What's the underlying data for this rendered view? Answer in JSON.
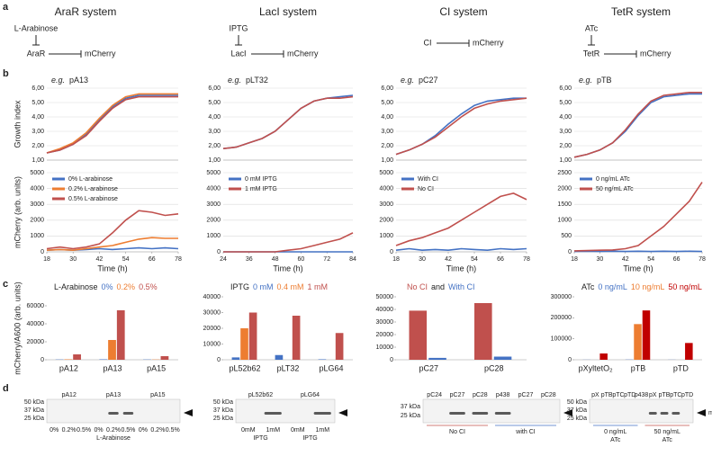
{
  "panel_labels": [
    "a",
    "b",
    "c",
    "d"
  ],
  "systems": [
    {
      "title": "AraR system",
      "inducer": "L-Arabinose",
      "repressor": "AraR",
      "reporter": "mCherry"
    },
    {
      "title": "LacI system",
      "inducer": "IPTG",
      "repressor": "LacI",
      "reporter": "mCherry"
    },
    {
      "title": "CI system",
      "repressor": "CI",
      "reporter": "mCherry"
    },
    {
      "title": "TetR system",
      "inducer": "ATc",
      "repressor": "TetR",
      "reporter": "mCherry"
    }
  ],
  "chart_data": [
    {
      "type": "line",
      "title_prefix": "e.g.",
      "title": "pA13",
      "ylabel": "Growth index",
      "x": [
        18,
        24,
        30,
        36,
        42,
        48,
        54,
        60,
        66,
        72,
        78
      ],
      "xlim": [
        18,
        78
      ],
      "ylim": [
        1,
        6
      ],
      "yticks": [
        {
          "value": 1,
          "label": "1,00"
        },
        {
          "value": 2,
          "label": "2,00"
        },
        {
          "value": 3,
          "label": "3,00"
        },
        {
          "value": 4,
          "label": "4,00"
        },
        {
          "value": 5,
          "label": "5,00"
        },
        {
          "value": 6,
          "label": "6,00"
        }
      ],
      "grid": true,
      "series": [
        {
          "color": "#4472c4",
          "values": [
            1.5,
            1.7,
            2.1,
            2.8,
            3.8,
            4.7,
            5.3,
            5.5,
            5.5,
            5.5,
            5.5
          ]
        },
        {
          "color": "#ed7d31",
          "values": [
            1.5,
            1.8,
            2.2,
            2.9,
            3.9,
            4.8,
            5.4,
            5.6,
            5.6,
            5.6,
            5.6
          ]
        },
        {
          "color": "#c0504d",
          "values": [
            1.5,
            1.7,
            2.1,
            2.7,
            3.7,
            4.6,
            5.2,
            5.4,
            5.4,
            5.4,
            5.4
          ]
        }
      ]
    },
    {
      "type": "line",
      "title_prefix": "e.g.",
      "title": "pLT32",
      "x": [
        24,
        30,
        36,
        42,
        48,
        54,
        60,
        66,
        72,
        78,
        84
      ],
      "xlim": [
        24,
        84
      ],
      "ylim": [
        1,
        6
      ],
      "yticks": [
        {
          "value": 1,
          "label": "1,00"
        },
        {
          "value": 2,
          "label": "2,00"
        },
        {
          "value": 3,
          "label": "3,00"
        },
        {
          "value": 4,
          "label": "4,00"
        },
        {
          "value": 5,
          "label": "5,00"
        },
        {
          "value": 6,
          "label": "6,00"
        }
      ],
      "grid": true,
      "series": [
        {
          "color": "#4472c4",
          "values": [
            1.8,
            1.9,
            2.2,
            2.5,
            3.0,
            3.8,
            4.6,
            5.1,
            5.3,
            5.4,
            5.5
          ]
        },
        {
          "color": "#c0504d",
          "values": [
            1.8,
            1.9,
            2.2,
            2.5,
            3.0,
            3.8,
            4.6,
            5.1,
            5.3,
            5.3,
            5.4
          ]
        }
      ]
    },
    {
      "type": "line",
      "title_prefix": "e.g.",
      "title": "pC27",
      "x": [
        18,
        24,
        30,
        36,
        42,
        48,
        54,
        60,
        66,
        72,
        78
      ],
      "xlim": [
        18,
        78
      ],
      "ylim": [
        1,
        6
      ],
      "yticks": [
        {
          "value": 1,
          "label": "1,00"
        },
        {
          "value": 2,
          "label": "2,00"
        },
        {
          "value": 3,
          "label": "3,00"
        },
        {
          "value": 4,
          "label": "4,00"
        },
        {
          "value": 5,
          "label": "5,00"
        },
        {
          "value": 6,
          "label": "6,00"
        }
      ],
      "grid": true,
      "series": [
        {
          "color": "#4472c4",
          "values": [
            1.4,
            1.7,
            2.1,
            2.7,
            3.5,
            4.2,
            4.8,
            5.1,
            5.2,
            5.3,
            5.3
          ]
        },
        {
          "color": "#c0504d",
          "values": [
            1.4,
            1.7,
            2.1,
            2.6,
            3.3,
            4.0,
            4.6,
            4.9,
            5.1,
            5.2,
            5.3
          ]
        }
      ]
    },
    {
      "type": "line",
      "title_prefix": "e.g.",
      "title": "pTB",
      "x": [
        18,
        24,
        30,
        36,
        42,
        48,
        54,
        60,
        66,
        72,
        78
      ],
      "xlim": [
        18,
        78
      ],
      "ylim": [
        1,
        6
      ],
      "yticks": [
        {
          "value": 1,
          "label": "1,00"
        },
        {
          "value": 2,
          "label": "2,00"
        },
        {
          "value": 3,
          "label": "3,00"
        },
        {
          "value": 4,
          "label": "4,00"
        },
        {
          "value": 5,
          "label": "5,00"
        },
        {
          "value": 6,
          "label": "6,00"
        }
      ],
      "grid": true,
      "series": [
        {
          "color": "#4472c4",
          "values": [
            1.2,
            1.4,
            1.7,
            2.2,
            3.0,
            4.1,
            5.0,
            5.4,
            5.5,
            5.6,
            5.6
          ]
        },
        {
          "color": "#c0504d",
          "values": [
            1.2,
            1.4,
            1.7,
            2.2,
            3.1,
            4.2,
            5.1,
            5.5,
            5.6,
            5.7,
            5.7
          ]
        }
      ]
    },
    {
      "type": "line",
      "ylabel": "mCherry (arb. units)",
      "xlabel": "Time (h)",
      "x": [
        18,
        24,
        30,
        36,
        42,
        48,
        54,
        60,
        66,
        72,
        78
      ],
      "xlim": [
        18,
        78
      ],
      "xticks": [
        18,
        30,
        42,
        54,
        66,
        78
      ],
      "ylim": [
        0,
        5000
      ],
      "yticks": [
        0,
        1000,
        2000,
        3000,
        4000,
        5000
      ],
      "grid": true,
      "series": [
        {
          "name": "0% L-arabinose",
          "color": "#4472c4",
          "values": [
            100,
            150,
            100,
            150,
            200,
            150,
            200,
            250,
            200,
            250,
            200
          ]
        },
        {
          "name": "0.2% L-arabinose",
          "color": "#ed7d31",
          "values": [
            100,
            150,
            100,
            200,
            300,
            400,
            600,
            800,
            900,
            850,
            850
          ]
        },
        {
          "name": "0.5% L-arabinose",
          "color": "#c0504d",
          "values": [
            200,
            300,
            200,
            300,
            500,
            1200,
            2000,
            2600,
            2500,
            2300,
            2400
          ]
        }
      ]
    },
    {
      "type": "line",
      "xlabel": "Time (h)",
      "x": [
        24,
        30,
        36,
        42,
        48,
        54,
        60,
        66,
        72,
        78,
        84
      ],
      "xlim": [
        24,
        84
      ],
      "xticks": [
        24,
        36,
        48,
        60,
        72,
        84
      ],
      "ylim": [
        0,
        5000
      ],
      "yticks": [
        0,
        1000,
        2000,
        3000,
        4000,
        5000
      ],
      "grid": true,
      "series": [
        {
          "name": "0 mM IPTG",
          "color": "#4472c4",
          "values": [
            0,
            0,
            0,
            0,
            0,
            0,
            0,
            0,
            0,
            0,
            0
          ]
        },
        {
          "name": "1 mM IPTG",
          "color": "#c0504d",
          "values": [
            0,
            0,
            0,
            0,
            0,
            100,
            200,
            400,
            600,
            800,
            1200
          ]
        }
      ]
    },
    {
      "type": "line",
      "xlabel": "Time (h)",
      "x": [
        18,
        24,
        30,
        36,
        42,
        48,
        54,
        60,
        66,
        72,
        78
      ],
      "xlim": [
        18,
        78
      ],
      "xticks": [
        18,
        30,
        42,
        54,
        66,
        78
      ],
      "ylim": [
        0,
        5000
      ],
      "yticks": [
        0,
        1000,
        2000,
        3000,
        4000,
        5000
      ],
      "grid": true,
      "series": [
        {
          "name": "With CI",
          "color": "#4472c4",
          "values": [
            100,
            200,
            100,
            150,
            100,
            200,
            150,
            100,
            200,
            150,
            200
          ]
        },
        {
          "name": "No CI",
          "color": "#c0504d",
          "values": [
            400,
            700,
            900,
            1200,
            1500,
            2000,
            2500,
            3000,
            3500,
            3700,
            3300
          ]
        }
      ]
    },
    {
      "type": "line",
      "xlabel": "Time (h)",
      "x": [
        18,
        24,
        30,
        36,
        42,
        48,
        54,
        60,
        66,
        72,
        78
      ],
      "xlim": [
        18,
        78
      ],
      "xticks": [
        18,
        30,
        42,
        54,
        66,
        78
      ],
      "ylim": [
        0,
        2500
      ],
      "yticks": [
        0,
        500,
        1000,
        1500,
        2000,
        2500
      ],
      "grid": true,
      "series": [
        {
          "name": "0 ng/mL ATc",
          "color": "#4472c4",
          "values": [
            10,
            20,
            10,
            20,
            10,
            20,
            10,
            20,
            10,
            20,
            10
          ]
        },
        {
          "name": "50 ng/mL ATc",
          "color": "#c0504d",
          "values": [
            30,
            40,
            50,
            60,
            100,
            200,
            500,
            800,
            1200,
            1600,
            2200
          ]
        }
      ]
    },
    {
      "type": "bar",
      "ylabel": "mCherry/A600 (arb. units)",
      "legend_title": "L-Arabinose",
      "categories": [
        "pA12",
        "pA13",
        "pA15"
      ],
      "ylim": [
        0,
        70000
      ],
      "yticks": [
        0,
        20000,
        40000,
        60000
      ],
      "series": [
        {
          "name": "0%",
          "color": "#4472c4",
          "values": [
            300,
            500,
            300
          ]
        },
        {
          "name": "0.2%",
          "color": "#ed7d31",
          "values": [
            500,
            22000,
            300
          ]
        },
        {
          "name": "0.5%",
          "color": "#c0504d",
          "values": [
            6000,
            55000,
            4000
          ]
        }
      ]
    },
    {
      "type": "bar",
      "legend_title": "IPTG",
      "categories": [
        "pL52b62",
        "pLT32",
        "pLG64"
      ],
      "ylim": [
        0,
        40000
      ],
      "yticks": [
        0,
        10000,
        20000,
        30000,
        40000
      ],
      "series": [
        {
          "name": "0 mM",
          "color": "#4472c4",
          "values": [
            1500,
            3000,
            300
          ]
        },
        {
          "name": "0.4 mM",
          "color": "#ed7d31",
          "values": [
            20000,
            null,
            null
          ]
        },
        {
          "name": "1 mM",
          "color": "#c0504d",
          "values": [
            30000,
            28000,
            17000
          ]
        }
      ]
    },
    {
      "type": "bar",
      "legend_separator": "and",
      "categories": [
        "pC27",
        "pC28"
      ],
      "ylim": [
        0,
        50000
      ],
      "yticks": [
        0,
        10000,
        20000,
        30000,
        40000,
        50000
      ],
      "series": [
        {
          "name": "No CI",
          "color": "#c0504d",
          "values": [
            39000,
            45000
          ]
        },
        {
          "name": "With CI",
          "color": "#4472c4",
          "values": [
            1500,
            2500
          ]
        }
      ]
    },
    {
      "type": "bar",
      "legend_title": "ATc",
      "categories": [
        "pXyltetO₂",
        "pTB",
        "pTD"
      ],
      "ylim": [
        0,
        300000
      ],
      "yticks": [
        0,
        100000,
        200000,
        300000
      ],
      "series": [
        {
          "name": "0 ng/mL",
          "color": "#4472c4",
          "values": [
            500,
            1000,
            500
          ]
        },
        {
          "name": "10 ng/mL",
          "color": "#ed7d31",
          "values": [
            null,
            170000,
            null
          ]
        },
        {
          "name": "50 ng/mL",
          "color": "#c00000",
          "values": [
            30000,
            235000,
            80000
          ]
        }
      ]
    }
  ],
  "blots": [
    {
      "lanes": [
        "pA12",
        "pA13",
        "pA15"
      ],
      "markers": [
        "50 kDa",
        "37 kDa",
        "25 kDa"
      ],
      "conditions": [
        "0%",
        "0.2%",
        "0.5%",
        "0%",
        "0.2%",
        "0.5%",
        "0%",
        "0.2%",
        "0.5%"
      ],
      "condition_colors": [
        "#4472c4",
        "#ed7d31",
        "#c0504d",
        "#4472c4",
        "#ed7d31",
        "#c0504d",
        "#4472c4",
        "#ed7d31",
        "#c0504d"
      ],
      "groups": [
        {
          "label": "L-Arabinose"
        }
      ]
    },
    {
      "lanes": [
        "pL52b62",
        "pLG64"
      ],
      "markers": [
        "50 kDa",
        "37 kDa",
        "25 kDa"
      ],
      "conditions": [
        "0mM",
        "1mM",
        "0mM",
        "1mM"
      ],
      "condition_colors": [
        "#4472c4",
        "#c0504d",
        "#4472c4",
        "#c0504d"
      ],
      "groups": [
        {
          "label": "IPTG"
        },
        {
          "label": "IPTG"
        }
      ]
    },
    {
      "lanes": [
        "pC24",
        "pC27",
        "pC28",
        "p438",
        "pC27",
        "pC28"
      ],
      "markers": [
        "37 kDa",
        "25 kDa"
      ],
      "groups": [
        {
          "label": "No CI",
          "color": "#c0504d"
        },
        {
          "label": "with CI",
          "color": "#4472c4"
        }
      ]
    },
    {
      "lanes": [
        "pX",
        "pTB",
        "pTC",
        "pTD",
        "p438",
        "pX",
        "pTB",
        "pTC",
        "pTD"
      ],
      "markers": [
        "50 kDa",
        "37 kDa",
        "25 kDa"
      ],
      "groups": [
        {
          "label": "0 ng/mL",
          "sub": "ATc",
          "color": "#4472c4"
        },
        {
          "label": "50 ng/mL",
          "sub": "ATc",
          "color": "#c0504d"
        }
      ],
      "protein": "mCh"
    }
  ]
}
